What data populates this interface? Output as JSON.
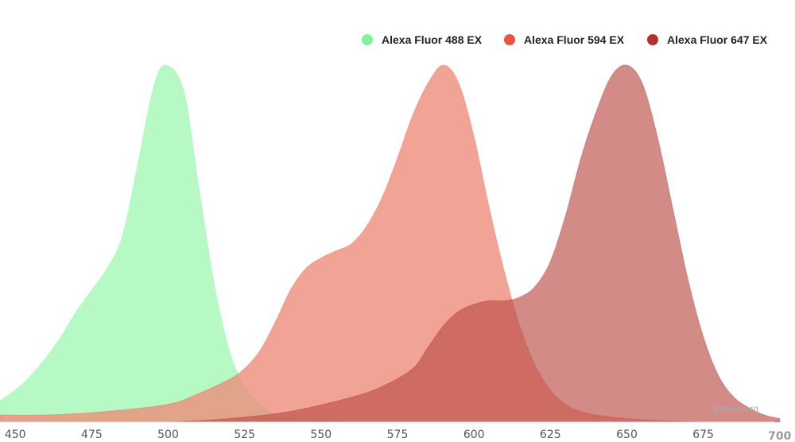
{
  "chart_data": {
    "type": "area",
    "title": "",
    "xlabel": "",
    "ylabel": "",
    "xlim": [
      445,
      705
    ],
    "ylim": [
      0,
      1
    ],
    "grid": false,
    "legend_position": "top-right",
    "x_ticks": [
      450,
      475,
      500,
      525,
      550,
      575,
      600,
      625,
      650,
      675,
      700
    ],
    "series": [
      {
        "name": "Alexa Fluor 488 EX",
        "color": "#7ff598",
        "fill": "#b7f9c4",
        "opacity": 1,
        "x": [
          445,
          450,
          455,
          460,
          465,
          470,
          475,
          480,
          485,
          490,
          495,
          499,
          505,
          510,
          515,
          520,
          525,
          530,
          535,
          540,
          545,
          550,
          560,
          570
        ],
        "y": [
          0.06,
          0.09,
          0.13,
          0.18,
          0.24,
          0.31,
          0.37,
          0.43,
          0.52,
          0.72,
          0.93,
          1.0,
          0.93,
          0.66,
          0.39,
          0.2,
          0.1,
          0.05,
          0.02,
          0.01,
          0.005,
          0.002,
          0.001,
          0
        ]
      },
      {
        "name": "Alexa Fluor 594 EX",
        "color": "#e8553b",
        "fill": "#ed8a78",
        "opacity": 0.78,
        "x": [
          445,
          460,
          480,
          500,
          510,
          520,
          525,
          530,
          535,
          540,
          545,
          550,
          555,
          560,
          565,
          570,
          575,
          580,
          585,
          590,
          595,
          600,
          605,
          610,
          615,
          620,
          625,
          630,
          635,
          640,
          650,
          660,
          675
        ],
        "y": [
          0.02,
          0.02,
          0.03,
          0.05,
          0.08,
          0.12,
          0.15,
          0.2,
          0.28,
          0.37,
          0.43,
          0.46,
          0.48,
          0.5,
          0.55,
          0.63,
          0.74,
          0.86,
          0.95,
          1.0,
          0.95,
          0.8,
          0.6,
          0.42,
          0.27,
          0.16,
          0.09,
          0.05,
          0.03,
          0.02,
          0.01,
          0.005,
          0
        ]
      },
      {
        "name": "Alexa Fluor 647 EX",
        "color": "#b3312a",
        "fill": "#bc4d48",
        "opacity": 0.65,
        "x": [
          500,
          520,
          540,
          560,
          570,
          580,
          585,
          590,
          595,
          600,
          605,
          610,
          615,
          620,
          625,
          630,
          635,
          640,
          645,
          650,
          655,
          660,
          665,
          670,
          675,
          680,
          685,
          690,
          695,
          700
        ],
        "y": [
          0,
          0.01,
          0.03,
          0.07,
          0.1,
          0.15,
          0.21,
          0.27,
          0.31,
          0.33,
          0.34,
          0.34,
          0.35,
          0.38,
          0.45,
          0.58,
          0.74,
          0.87,
          0.97,
          1.0,
          0.95,
          0.8,
          0.6,
          0.4,
          0.24,
          0.13,
          0.07,
          0.04,
          0.02,
          0.01
        ]
      }
    ],
    "watermark": "fpbase.org"
  }
}
